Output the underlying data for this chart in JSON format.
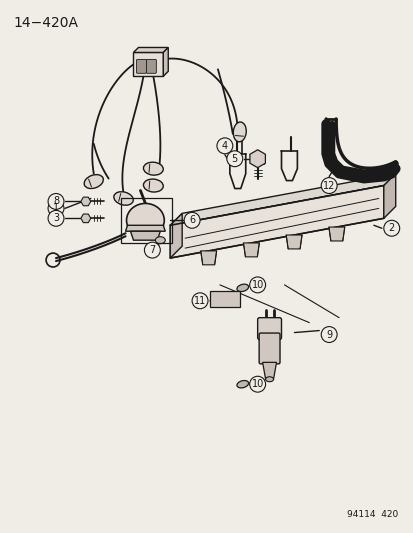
{
  "title_top_left": "14−420A",
  "bottom_right_text": "94114  420",
  "bg_color": "#f0ece6",
  "lc": "#1a1a1a",
  "fig_width": 4.14,
  "fig_height": 5.33,
  "dpi": 100
}
